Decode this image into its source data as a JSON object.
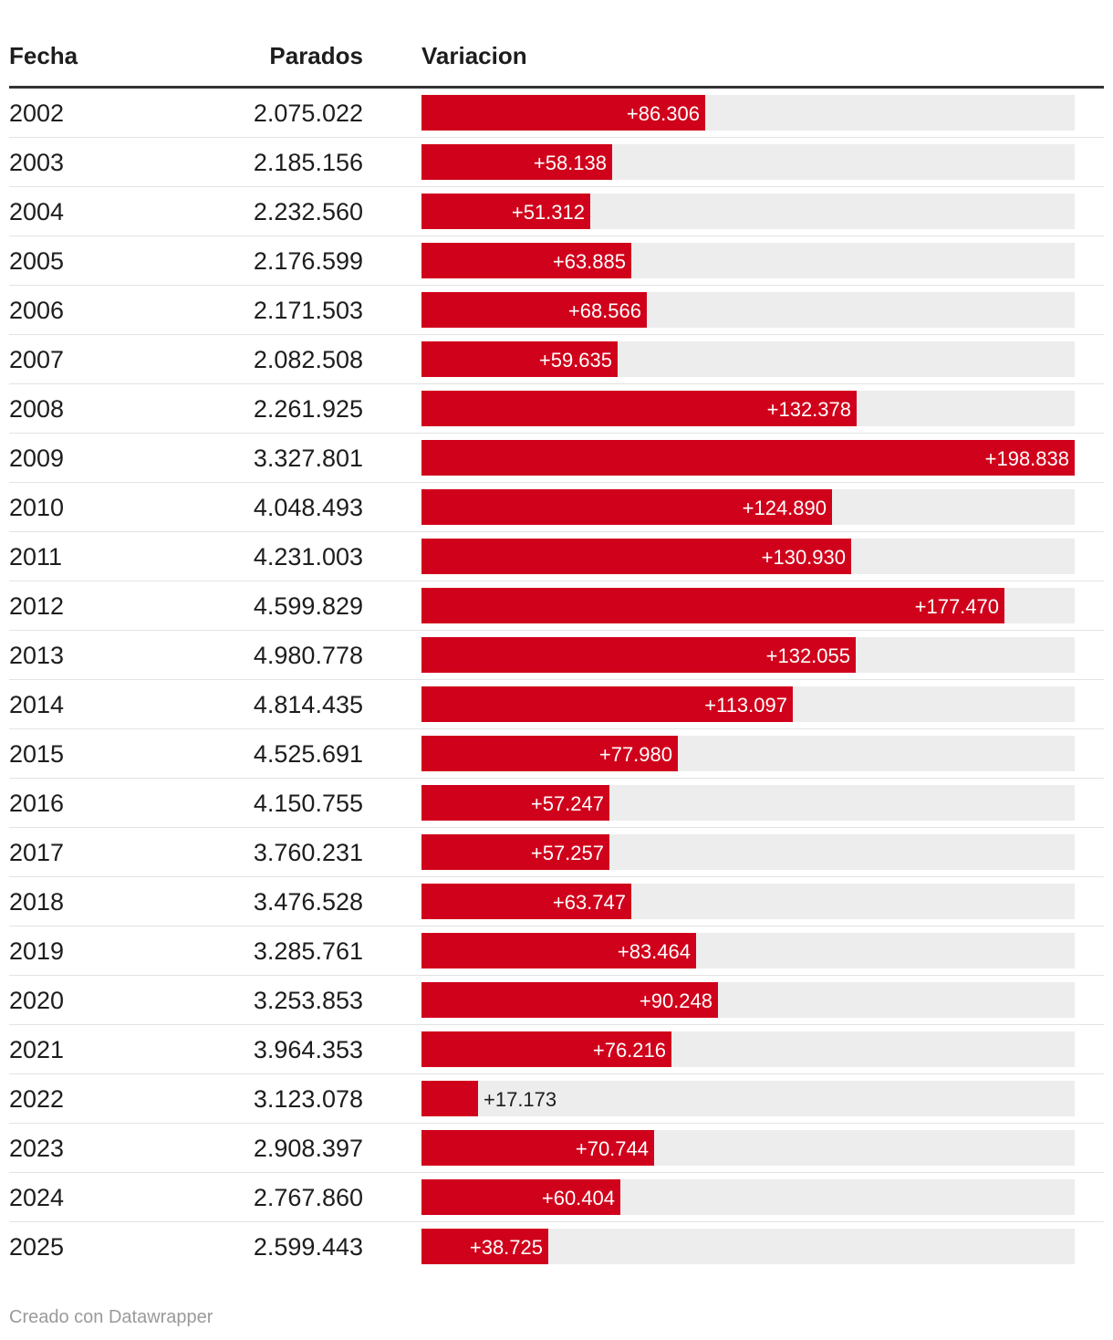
{
  "header": {
    "col_fecha": "Fecha",
    "col_parados": "Parados",
    "col_variacion": "Variacion"
  },
  "chart_data": {
    "type": "table",
    "bar_color": "#d0021b",
    "track_color": "#ededed",
    "columns": [
      "Fecha",
      "Parados",
      "Variacion"
    ],
    "max_variacion": 198838,
    "rows": [
      {
        "year": "2002",
        "parados": "2.075.022",
        "variacion": 86306,
        "variacion_label": "+86.306"
      },
      {
        "year": "2003",
        "parados": "2.185.156",
        "variacion": 58138,
        "variacion_label": "+58.138"
      },
      {
        "year": "2004",
        "parados": "2.232.560",
        "variacion": 51312,
        "variacion_label": "+51.312"
      },
      {
        "year": "2005",
        "parados": "2.176.599",
        "variacion": 63885,
        "variacion_label": "+63.885"
      },
      {
        "year": "2006",
        "parados": "2.171.503",
        "variacion": 68566,
        "variacion_label": "+68.566"
      },
      {
        "year": "2007",
        "parados": "2.082.508",
        "variacion": 59635,
        "variacion_label": "+59.635"
      },
      {
        "year": "2008",
        "parados": "2.261.925",
        "variacion": 132378,
        "variacion_label": "+132.378"
      },
      {
        "year": "2009",
        "parados": "3.327.801",
        "variacion": 198838,
        "variacion_label": "+198.838"
      },
      {
        "year": "2010",
        "parados": "4.048.493",
        "variacion": 124890,
        "variacion_label": "+124.890"
      },
      {
        "year": "2011",
        "parados": "4.231.003",
        "variacion": 130930,
        "variacion_label": "+130.930"
      },
      {
        "year": "2012",
        "parados": "4.599.829",
        "variacion": 177470,
        "variacion_label": "+177.470"
      },
      {
        "year": "2013",
        "parados": "4.980.778",
        "variacion": 132055,
        "variacion_label": "+132.055"
      },
      {
        "year": "2014",
        "parados": "4.814.435",
        "variacion": 113097,
        "variacion_label": "+113.097"
      },
      {
        "year": "2015",
        "parados": "4.525.691",
        "variacion": 77980,
        "variacion_label": "+77.980"
      },
      {
        "year": "2016",
        "parados": "4.150.755",
        "variacion": 57247,
        "variacion_label": "+57.247"
      },
      {
        "year": "2017",
        "parados": "3.760.231",
        "variacion": 57257,
        "variacion_label": "+57.257"
      },
      {
        "year": "2018",
        "parados": "3.476.528",
        "variacion": 63747,
        "variacion_label": "+63.747"
      },
      {
        "year": "2019",
        "parados": "3.285.761",
        "variacion": 83464,
        "variacion_label": "+83.464"
      },
      {
        "year": "2020",
        "parados": "3.253.853",
        "variacion": 90248,
        "variacion_label": "+90.248"
      },
      {
        "year": "2021",
        "parados": "3.964.353",
        "variacion": 76216,
        "variacion_label": "+76.216"
      },
      {
        "year": "2022",
        "parados": "3.123.078",
        "variacion": 17173,
        "variacion_label": "+17.173"
      },
      {
        "year": "2023",
        "parados": "2.908.397",
        "variacion": 70744,
        "variacion_label": "+70.744"
      },
      {
        "year": "2024",
        "parados": "2.767.860",
        "variacion": 60404,
        "variacion_label": "+60.404"
      },
      {
        "year": "2025",
        "parados": "2.599.443",
        "variacion": 38725,
        "variacion_label": "+38.725"
      }
    ]
  },
  "footer": {
    "credit": "Creado con Datawrapper"
  }
}
